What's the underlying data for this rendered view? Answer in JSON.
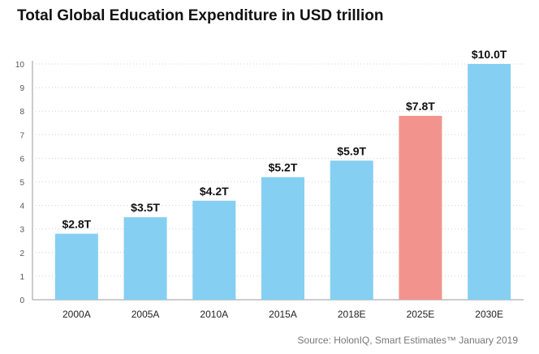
{
  "chart_data": {
    "type": "bar",
    "title": "Total Global Education Expenditure in USD trillion",
    "categories": [
      "2000A",
      "2005A",
      "2010A",
      "2015A",
      "2018E",
      "2025E",
      "2030E"
    ],
    "values": [
      2.8,
      3.5,
      4.2,
      5.2,
      5.9,
      7.8,
      10.0
    ],
    "data_labels": [
      "$2.8T",
      "$3.5T",
      "$4.2T",
      "$5.2T",
      "$5.9T",
      "$7.8T",
      "$10.0T"
    ],
    "highlight_category": "2025E",
    "yticks": [
      0,
      1,
      2,
      3,
      4,
      5,
      6,
      7,
      8,
      9,
      10
    ],
    "ylim": [
      0,
      10
    ],
    "grid": "dotted horizontal",
    "xlabel": "",
    "ylabel": "",
    "colors": {
      "bar": "#85cff2",
      "highlight": "#f2948d",
      "grid": "#d0d0d0",
      "axis": "#999999"
    },
    "source": "Source: HolonIQ, Smart Estimates™ January 2019"
  }
}
